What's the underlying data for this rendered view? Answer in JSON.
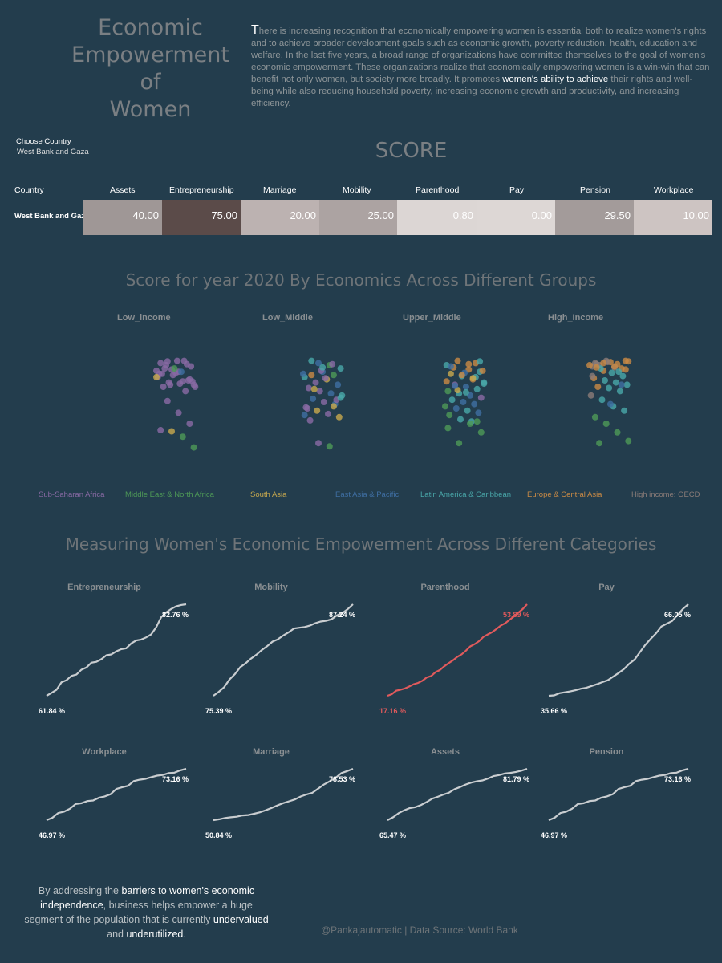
{
  "header": {
    "title_lines": [
      "Economic",
      "Empowerment",
      "of",
      "Women"
    ],
    "intro": {
      "dropcap": "T",
      "part1": "here is increasing recognition that economically empowering women is essential both to realize women's rights and to achieve broader development goals such as economic growth, poverty reduction, health, education and welfare. In the last five years, a broad range of organizations have committed themselves to the goal of women's economic empowerment. These organizations realize that economically empowering women is a win-win that can benefit not only women, but society more broadly. It promotes ",
      "highlight": "women's ability to achieve",
      "part2": " their rights and well-being while also reducing household poverty, increasing economic growth and productivity, and increasing efficiency."
    }
  },
  "filter": {
    "label": "Choose Country",
    "value": "West Bank and Gaza"
  },
  "score_table": {
    "title": "SCORE",
    "country_header": "Country",
    "country": "West Bank and Gaza",
    "columns": [
      "Assets",
      "Entrepreneurship",
      "Marriage",
      "Mobility",
      "Parenthood",
      "Pay",
      "Pension",
      "Workplace"
    ],
    "values": [
      "40.00",
      "75.00",
      "20.00",
      "25.00",
      "0.80",
      "0.00",
      "29.50",
      "10.00"
    ],
    "cell_colors": [
      "#9f9796",
      "#5b4b49",
      "#bcb2b1",
      "#aca3a2",
      "#dcd6d4",
      "#ddd7d5",
      "#a39b9a",
      "#cdc4c2"
    ]
  },
  "chart_data": [
    {
      "type": "scatter",
      "title": "Score for year 2020 By Economics Across Different Groups",
      "panels": [
        "Low_income",
        "Low_Middle",
        "Upper_Middle",
        "High_Income"
      ],
      "legend": [
        {
          "name": "Sub-Saharan Africa",
          "color": "#8a6aa5"
        },
        {
          "name": "Middle East & North Africa",
          "color": "#4e9a57"
        },
        {
          "name": "South Asia",
          "color": "#c8a94e"
        },
        {
          "name": "East Asia & Pacific",
          "color": "#3f6fa3"
        },
        {
          "name": "Latin America & Caribbean",
          "color": "#49a7a9"
        },
        {
          "name": "Europe & Central Asia",
          "color": "#c98a45"
        },
        {
          "name": "High income: OECD",
          "color": "#8b7c78"
        }
      ],
      "legend_placement": "bottom",
      "y_range": [
        25,
        100
      ],
      "points": [
        [
          [
            80.6,
            0
          ],
          [
            86,
            0
          ],
          [
            80,
            0
          ],
          [
            75.6,
            0
          ],
          [
            85,
            0
          ],
          [
            81.3,
            0
          ],
          [
            74.4,
            0
          ],
          [
            72.5,
            0
          ],
          [
            81.9,
            0
          ],
          [
            79.4,
            0
          ],
          [
            84.4,
            0
          ],
          [
            76.9,
            0
          ],
          [
            73.8,
            0
          ],
          [
            73.1,
            0
          ],
          [
            83.1,
            0
          ],
          [
            78.8,
            0
          ],
          [
            78.1,
            0
          ],
          [
            86.3,
            0
          ],
          [
            71.3,
            0
          ],
          [
            83.8,
            0
          ],
          [
            86.3,
            0
          ],
          [
            75,
            0
          ],
          [
            78.8,
            0
          ],
          [
            72.5,
            0
          ],
          [
            80,
            3
          ],
          [
            74.4,
            0
          ],
          [
            71.3,
            0
          ],
          [
            81.9,
            1
          ],
          [
            68.8,
            0
          ],
          [
            76.9,
            2
          ],
          [
            63.1,
            0
          ],
          [
            56.3,
            0
          ],
          [
            50,
            0
          ],
          [
            46.3,
            0
          ],
          [
            45.6,
            2
          ],
          [
            42.5,
            1
          ],
          [
            36.3,
            1
          ]
        ],
        [
          [
            85,
            3
          ],
          [
            83.8,
            1
          ],
          [
            81.9,
            4
          ],
          [
            86.3,
            4
          ],
          [
            80,
            3
          ],
          [
            78.1,
            1
          ],
          [
            76.9,
            4
          ],
          [
            73.8,
            0
          ],
          [
            75.6,
            2
          ],
          [
            72.5,
            3
          ],
          [
            70.6,
            0
          ],
          [
            68.8,
            0
          ],
          [
            67.5,
            3
          ],
          [
            66.3,
            4
          ],
          [
            64.4,
            3
          ],
          [
            62.5,
            0
          ],
          [
            61.3,
            3
          ],
          [
            59.4,
            0
          ],
          [
            57.5,
            2
          ],
          [
            55.6,
            0
          ],
          [
            53.8,
            2
          ],
          [
            51.9,
            0
          ],
          [
            80.6,
            0
          ],
          [
            84.4,
            0
          ],
          [
            78.8,
            3
          ],
          [
            70,
            2
          ],
          [
            76.3,
            0
          ],
          [
            63.8,
            0
          ],
          [
            58.8,
            0
          ],
          [
            38.8,
            0
          ],
          [
            36.9,
            1
          ],
          [
            65,
            4
          ],
          [
            78.1,
            5
          ],
          [
            82.5,
            4
          ],
          [
            60,
            2
          ],
          [
            55,
            3
          ]
        ],
        [
          [
            85,
            5
          ],
          [
            83.8,
            4
          ],
          [
            86.3,
            5
          ],
          [
            81.3,
            5
          ],
          [
            80,
            4
          ],
          [
            78.8,
            2
          ],
          [
            77.5,
            4
          ],
          [
            75.6,
            5
          ],
          [
            73.8,
            4
          ],
          [
            72.5,
            0
          ],
          [
            71.3,
            3
          ],
          [
            70,
            4
          ],
          [
            68.8,
            1
          ],
          [
            67.5,
            4
          ],
          [
            66.3,
            3
          ],
          [
            65,
            0
          ],
          [
            63.8,
            4
          ],
          [
            62.5,
            3
          ],
          [
            61.3,
            3
          ],
          [
            60,
            1
          ],
          [
            58.8,
            3
          ],
          [
            57.5,
            4
          ],
          [
            56.3,
            3
          ],
          [
            55,
            1
          ],
          [
            52.5,
            4
          ],
          [
            51.3,
            4
          ],
          [
            80.6,
            5
          ],
          [
            82.5,
            5
          ],
          [
            79.4,
            3
          ],
          [
            76.9,
            4
          ],
          [
            74.4,
            5
          ],
          [
            69.4,
            2
          ],
          [
            84.4,
            5
          ],
          [
            86,
            4
          ],
          [
            83.1,
            3
          ],
          [
            78.1,
            5
          ],
          [
            76.3,
            2
          ],
          [
            73.1,
            4
          ],
          [
            71.9,
            3
          ],
          [
            68.1,
            4
          ],
          [
            51.3,
            1
          ],
          [
            47.5,
            1
          ],
          [
            38.8,
            1
          ],
          [
            50,
            1
          ],
          [
            45,
            1
          ]
        ],
        [
          [
            85,
            6
          ],
          [
            86.3,
            6
          ],
          [
            84.4,
            5
          ],
          [
            86,
            5
          ],
          [
            83.8,
            6
          ],
          [
            85.6,
            5
          ],
          [
            81.9,
            5
          ],
          [
            83.1,
            6
          ],
          [
            80.6,
            5
          ],
          [
            82.5,
            6
          ],
          [
            81.3,
            5
          ],
          [
            84.4,
            6
          ],
          [
            85.6,
            6
          ],
          [
            80,
            4
          ],
          [
            83.8,
            5
          ],
          [
            81.9,
            4
          ],
          [
            79.4,
            4
          ],
          [
            77.5,
            4
          ],
          [
            76.3,
            5
          ],
          [
            75,
            4
          ],
          [
            73.8,
            4
          ],
          [
            72.5,
            4
          ],
          [
            71.3,
            5
          ],
          [
            70.6,
            4
          ],
          [
            68.8,
            4
          ],
          [
            66.3,
            6
          ],
          [
            63.8,
            4
          ],
          [
            60,
            4
          ],
          [
            57.5,
            4
          ],
          [
            53.8,
            1
          ],
          [
            50,
            1
          ],
          [
            45,
            1
          ],
          [
            40,
            1
          ],
          [
            38.8,
            1
          ],
          [
            61.3,
            3
          ],
          [
            72.5,
            3
          ],
          [
            77.5,
            6
          ],
          [
            85,
            5
          ],
          [
            83.1,
            5
          ],
          [
            86.3,
            5
          ],
          [
            82.5,
            5
          ]
        ]
      ]
    },
    {
      "type": "line",
      "title": "Measuring Women's Economic Empowerment Across Different Categories",
      "panels": [
        {
          "name": "Entrepreneurship",
          "start_label": "61.84 %",
          "end_label": "82.76 %",
          "values": [
            61.84,
            62.5,
            63.2,
            64.9,
            65.4,
            66.4,
            66.7,
            67.8,
            68.3,
            69.4,
            69.6,
            70.2,
            71.1,
            71.3,
            72,
            72.5,
            72.7,
            73.8,
            74.5,
            74.7,
            75.2,
            75.9,
            77.5,
            79.8,
            80.9,
            81.7,
            82.3,
            82.6,
            82.76
          ],
          "highlight": false
        },
        {
          "name": "Mobility",
          "start_label": "75.39 %",
          "end_label": "87.24 %",
          "values": [
            75.39,
            75.9,
            76.5,
            77.5,
            78.2,
            79.1,
            79.6,
            80.2,
            80.7,
            81.3,
            81.8,
            82.4,
            82.7,
            83.2,
            83.6,
            84.1,
            84.2,
            84.3,
            84.5,
            84.8,
            85,
            85.1,
            85.3,
            85.8,
            86.1,
            86.6,
            87.24
          ],
          "highlight": false
        },
        {
          "name": "Parenthood",
          "start_label": "17.16 %",
          "end_label": "53.89 %",
          "values": [
            17.16,
            17.8,
            19.2,
            19.6,
            20.1,
            20.9,
            21.8,
            22.3,
            23.2,
            24.5,
            25.1,
            26.6,
            27.5,
            29,
            30.2,
            31.4,
            32.8,
            33.8,
            35.3,
            37,
            37.9,
            39.1,
            40.8,
            41.8,
            42.7,
            44,
            45.4,
            46.3,
            47.7,
            49,
            50.5,
            52,
            53.89
          ],
          "highlight": true
        },
        {
          "name": "Pay",
          "start_label": "35.66 %",
          "end_label": "66.05 %",
          "values": [
            35.66,
            35.8,
            36.5,
            36.8,
            37.1,
            37.5,
            38,
            38.3,
            38.9,
            39.5,
            40.2,
            40.8,
            42,
            43.2,
            44.5,
            46.3,
            47.7,
            50.2,
            52.6,
            54.6,
            56.4,
            58.7,
            59.6,
            60.5,
            62.5,
            64.5,
            66.05
          ],
          "highlight": false
        },
        {
          "name": "Workplace",
          "start_label": "46.97 %",
          "end_label": "73.16 %",
          "values": [
            46.97,
            48.2,
            50.6,
            51.3,
            52.8,
            55.2,
            55.6,
            56.7,
            57,
            58.4,
            59.1,
            60.2,
            62.9,
            63.8,
            64.5,
            66.9,
            67.6,
            68,
            68.9,
            69.7,
            70,
            71,
            71.2,
            72.4,
            73.16
          ],
          "highlight": false
        },
        {
          "name": "Marriage",
          "start_label": "50.84 %",
          "end_label": "78.53 %",
          "values": [
            50.84,
            51.3,
            52,
            52.4,
            52.7,
            53.4,
            53.6,
            54.3,
            55.1,
            56.2,
            57.4,
            58.8,
            60,
            61,
            62,
            63.6,
            64.7,
            65.6,
            67.8,
            70.1,
            71.8,
            73.7,
            76.2,
            77.3,
            78.53
          ],
          "highlight": false
        },
        {
          "name": "Assets",
          "start_label": "65.47 %",
          "end_label": "81.79 %",
          "values": [
            65.47,
            66.4,
            67.7,
            68.6,
            69.3,
            69.6,
            70.3,
            71.2,
            72.3,
            72.9,
            73.6,
            74.2,
            75.3,
            76,
            76.8,
            77.4,
            77.8,
            78.1,
            78.7,
            79.5,
            79.8,
            80.3,
            80.5,
            80.8,
            81.2,
            81.79
          ],
          "highlight": false
        },
        {
          "name": "Pension",
          "start_label": "46.97 %",
          "end_label": "73.16 %",
          "values": [
            46.97,
            48.2,
            50.6,
            51.3,
            52.8,
            55.2,
            55.6,
            56.7,
            57,
            58.4,
            59.1,
            60.2,
            62.9,
            63.8,
            64.5,
            66.9,
            67.6,
            68,
            68.9,
            69.7,
            70,
            71,
            71.2,
            72.4,
            73.16
          ],
          "highlight": false
        }
      ]
    }
  ],
  "footer": {
    "msg_parts": [
      {
        "t": "By addressing the ",
        "hl": false
      },
      {
        "t": "barriers to women's economic independence",
        "hl": true
      },
      {
        "t": ", business helps empower a huge segment of the population that is currently ",
        "hl": false
      },
      {
        "t": "undervalued",
        "hl": true
      },
      {
        "t": " and ",
        "hl": false
      },
      {
        "t": "underutilized",
        "hl": true
      },
      {
        "t": ".",
        "hl": false
      }
    ],
    "credit": "@Pankajautomatic | Data Source: World Bank"
  }
}
